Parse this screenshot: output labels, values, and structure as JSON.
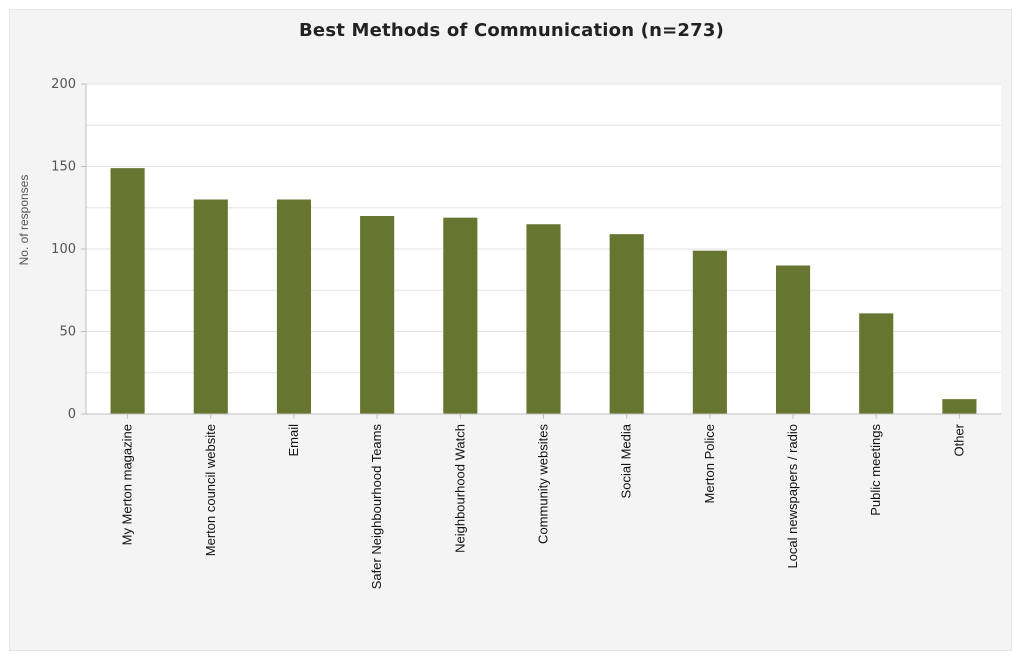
{
  "chart_data": {
    "type": "bar",
    "title": "Best Methods of Communication (n=273)",
    "xlabel": "",
    "ylabel": "No. of responses",
    "ylim": [
      0,
      200
    ],
    "yticks": [
      0,
      50,
      100,
      150,
      200
    ],
    "grid": true,
    "legend": "none",
    "categories": [
      "My Merton magazine",
      "Merton council website",
      "Email",
      "Safer Neighbourhood Teams",
      "Neighbourhood Watch",
      "Community websites",
      "Social Media",
      "Merton Police",
      "Local newspapers / radio",
      "Public meetings",
      "Other"
    ],
    "values": [
      149,
      130,
      130,
      120,
      119,
      115,
      109,
      99,
      90,
      61,
      9
    ],
    "colors": {
      "bar": "#66752f",
      "plot_background": "#ffffff",
      "gridline": "#e3e3e3",
      "axis": "#bfbfbf"
    }
  }
}
